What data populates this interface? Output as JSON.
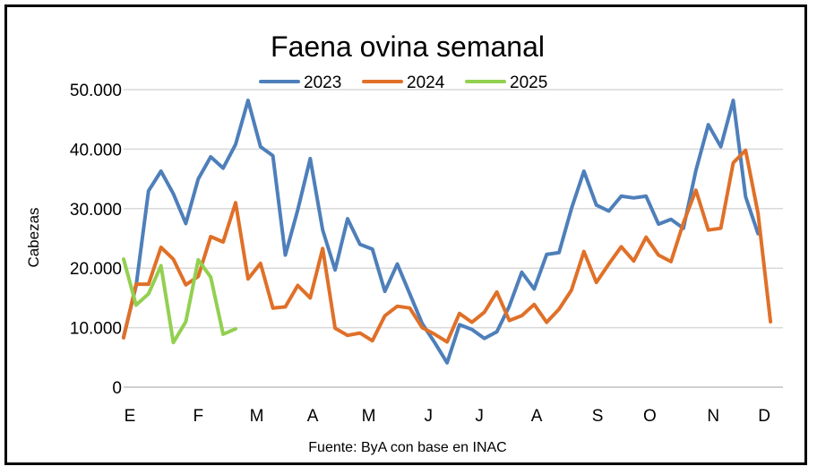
{
  "chart_data": {
    "type": "line",
    "title": "Faena ovina semanal",
    "ylabel": "Cabezas",
    "xlabel": "",
    "source": "Fuente: ByA con base en INAC",
    "ylim": [
      0,
      50000
    ],
    "yticks": [
      0,
      10000,
      20000,
      30000,
      40000,
      50000
    ],
    "ytick_labels": [
      "0",
      "10.000",
      "20.000",
      "30.000",
      "40.000",
      "50.000"
    ],
    "xlim": [
      1,
      54
    ],
    "month_ticks": [
      {
        "label": "E",
        "week": 1.5
      },
      {
        "label": "F",
        "week": 7
      },
      {
        "label": "M",
        "week": 11.7
      },
      {
        "label": "A",
        "week": 16.2
      },
      {
        "label": "M",
        "week": 20.7
      },
      {
        "label": "J",
        "week": 25.5
      },
      {
        "label": "J",
        "week": 29.6
      },
      {
        "label": "A",
        "week": 34.2
      },
      {
        "label": "S",
        "week": 39.1
      },
      {
        "label": "O",
        "week": 43.3
      },
      {
        "label": "N",
        "week": 48.4
      },
      {
        "label": "D",
        "week": 52.5
      }
    ],
    "grid": true,
    "legend_position": "top",
    "series": [
      {
        "name": "2023",
        "color": "#4e7fba",
        "values": [
          8500,
          17000,
          33000,
          36300,
          32500,
          27500,
          35000,
          38700,
          36800,
          40800,
          48200,
          40400,
          38900,
          22200,
          29800,
          38400,
          26400,
          19700,
          28300,
          24000,
          23200,
          16100,
          20700,
          15700,
          10700,
          7500,
          4100,
          10500,
          9700,
          8200,
          9300,
          13600,
          19300,
          16500,
          22300,
          22600,
          30000,
          36300,
          30600,
          29600,
          32100,
          31800,
          32100,
          27400,
          28200,
          26700,
          36400,
          44100,
          40400,
          48200,
          32000,
          25800
        ]
      },
      {
        "name": "2024",
        "color": "#e07028",
        "values": [
          8300,
          17300,
          17300,
          23500,
          21500,
          17200,
          18600,
          25300,
          24400,
          31000,
          18200,
          20800,
          13300,
          13500,
          17100,
          15000,
          23300,
          9900,
          8700,
          9100,
          7800,
          12000,
          13600,
          13300,
          10000,
          8900,
          7600,
          12400,
          10900,
          12600,
          16000,
          11200,
          12000,
          13900,
          10900,
          13100,
          16300,
          22800,
          17600,
          20700,
          23600,
          21200,
          25200,
          22200,
          21100,
          27600,
          33100,
          26400,
          26700,
          37700,
          39800,
          29200,
          11000
        ]
      },
      {
        "name": "2025",
        "color": "#92d050",
        "values": [
          21500,
          13800,
          15700,
          20400,
          7500,
          11000,
          21400,
          18500,
          8900,
          9800
        ]
      }
    ]
  }
}
